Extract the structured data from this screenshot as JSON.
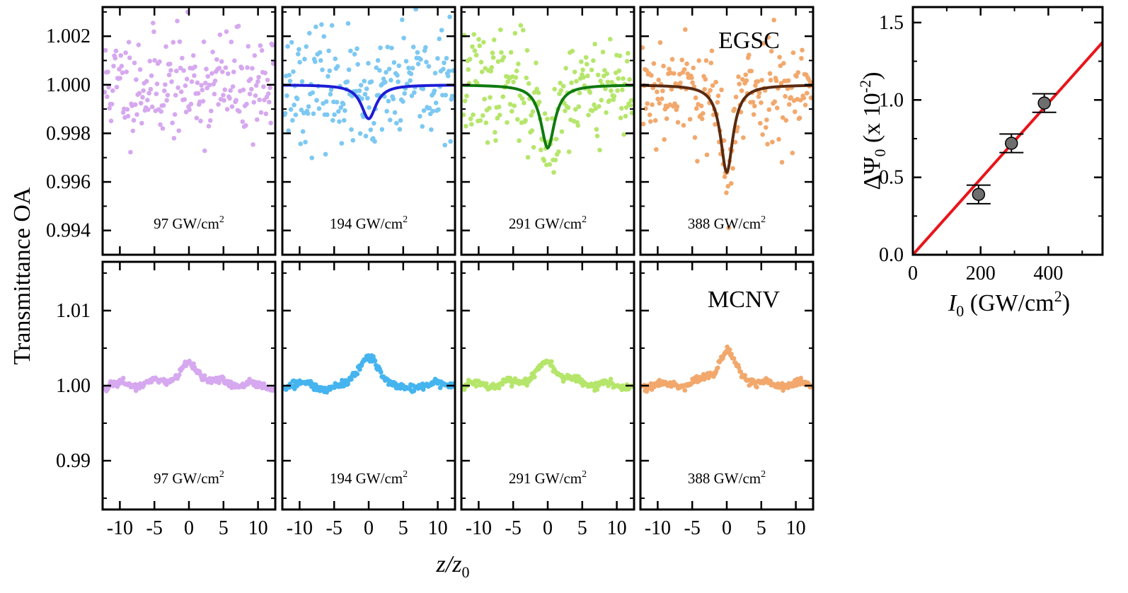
{
  "chart_data": {
    "type": "scatter",
    "description": "Open-aperture Z-scan transmittance grid (2 rows x 4 intensities) plus ΔΨ0 vs I0 linear fit",
    "shared": {
      "ylabel": "Transmittance OA",
      "xlabel_main": "z",
      "xlabel_sub": "0",
      "x_ticks": [
        "-10",
        "-5",
        "0",
        "5",
        "10"
      ],
      "x_tick_values": [
        -10,
        -5,
        0,
        5,
        10
      ],
      "xlim": [
        -12.5,
        12.5
      ]
    },
    "rows": [
      {
        "group": "EGSC",
        "ylim": [
          0.993,
          1.0032
        ],
        "y_ticks": [
          "0.994",
          "0.996",
          "0.998",
          "1.000",
          "1.002"
        ],
        "y_tick_values": [
          0.994,
          0.996,
          0.998,
          1.0,
          1.002
        ],
        "noise": 0.0011,
        "panels": [
          {
            "intensity_label": "97 GW/cm",
            "sup": "2",
            "color": "#d6a8ef",
            "fit_color": null,
            "dip_depth": 0.0,
            "dip_width": 1.5,
            "peak_height": 0.0,
            "fit": false,
            "seed": 11
          },
          {
            "intensity_label": "194 GW/cm",
            "sup": "2",
            "color": "#7cc8f2",
            "fit_color": "#1d1dd6",
            "dip_depth": 0.0014,
            "dip_width": 1.3,
            "peak_height": 0.0,
            "fit": true,
            "seed": 23
          },
          {
            "intensity_label": "291 GW/cm",
            "sup": "2",
            "color": "#b5e66b",
            "fit_color": "#0f7a0f",
            "dip_depth": 0.0026,
            "dip_width": 1.2,
            "peak_height": 0.0,
            "fit": true,
            "seed": 37
          },
          {
            "intensity_label": "388 GW/cm",
            "sup": "2",
            "color": "#f2a86c",
            "fit_color": "#5a2a10",
            "dip_depth": 0.0036,
            "dip_width": 1.1,
            "peak_height": 0.0,
            "fit": true,
            "seed": 53
          }
        ]
      },
      {
        "group": "MCNV",
        "ylim": [
          0.9835,
          1.0165
        ],
        "y_ticks": [
          "0.99",
          "1.00",
          "1.01"
        ],
        "y_tick_values": [
          0.99,
          1.0,
          1.01
        ],
        "noise": 0.0005,
        "panels": [
          {
            "intensity_label": "97 GW/cm",
            "sup": "2",
            "color": "#d6a8ef",
            "dip_depth": 0.0,
            "dip_width": 2.0,
            "peak_height": 0.0027,
            "fit": false,
            "seed": 71
          },
          {
            "intensity_label": "194 GW/cm",
            "sup": "2",
            "color": "#45b4ef",
            "dip_depth": 0.0,
            "dip_width": 2.0,
            "peak_height": 0.0036,
            "fit": false,
            "seed": 83
          },
          {
            "intensity_label": "291 GW/cm",
            "sup": "2",
            "color": "#b5e66b",
            "dip_depth": 0.0,
            "dip_width": 2.0,
            "peak_height": 0.003,
            "fit": false,
            "seed": 97
          },
          {
            "intensity_label": "388 GW/cm",
            "sup": "2",
            "color": "#f2a86c",
            "dip_depth": 0.0,
            "dip_width": 1.6,
            "peak_height": 0.0045,
            "fit": false,
            "seed": 101
          }
        ]
      }
    ],
    "inset": {
      "type": "scatter+line",
      "xlabel_main": "I",
      "xlabel_sub": "0",
      "xlabel_rest": " (GW/cm",
      "xlabel_sup": "2",
      "xlabel_end": ")",
      "ylabel_main": "ΔΨ",
      "ylabel_sub": "0",
      "ylabel_rest": " (x 10",
      "ylabel_sup": "-2",
      "ylabel_end": ")",
      "xlim": [
        0,
        560
      ],
      "ylim": [
        0,
        1.6
      ],
      "x_ticks": [
        "0",
        "200",
        "400"
      ],
      "x_tick_values": [
        0,
        200,
        400
      ],
      "y_ticks": [
        "0.0",
        "0.5",
        "1.0",
        "1.5"
      ],
      "y_tick_values": [
        0,
        0.5,
        1.0,
        1.5
      ],
      "points": [
        {
          "x": 194,
          "y": 0.39,
          "err": 0.06
        },
        {
          "x": 291,
          "y": 0.72,
          "err": 0.06
        },
        {
          "x": 388,
          "y": 0.98,
          "err": 0.06
        }
      ],
      "fit_line": {
        "slope": 0.00245,
        "intercept": 0.0,
        "color": "#e8151b"
      },
      "marker_color": "#6e6e6e"
    }
  }
}
